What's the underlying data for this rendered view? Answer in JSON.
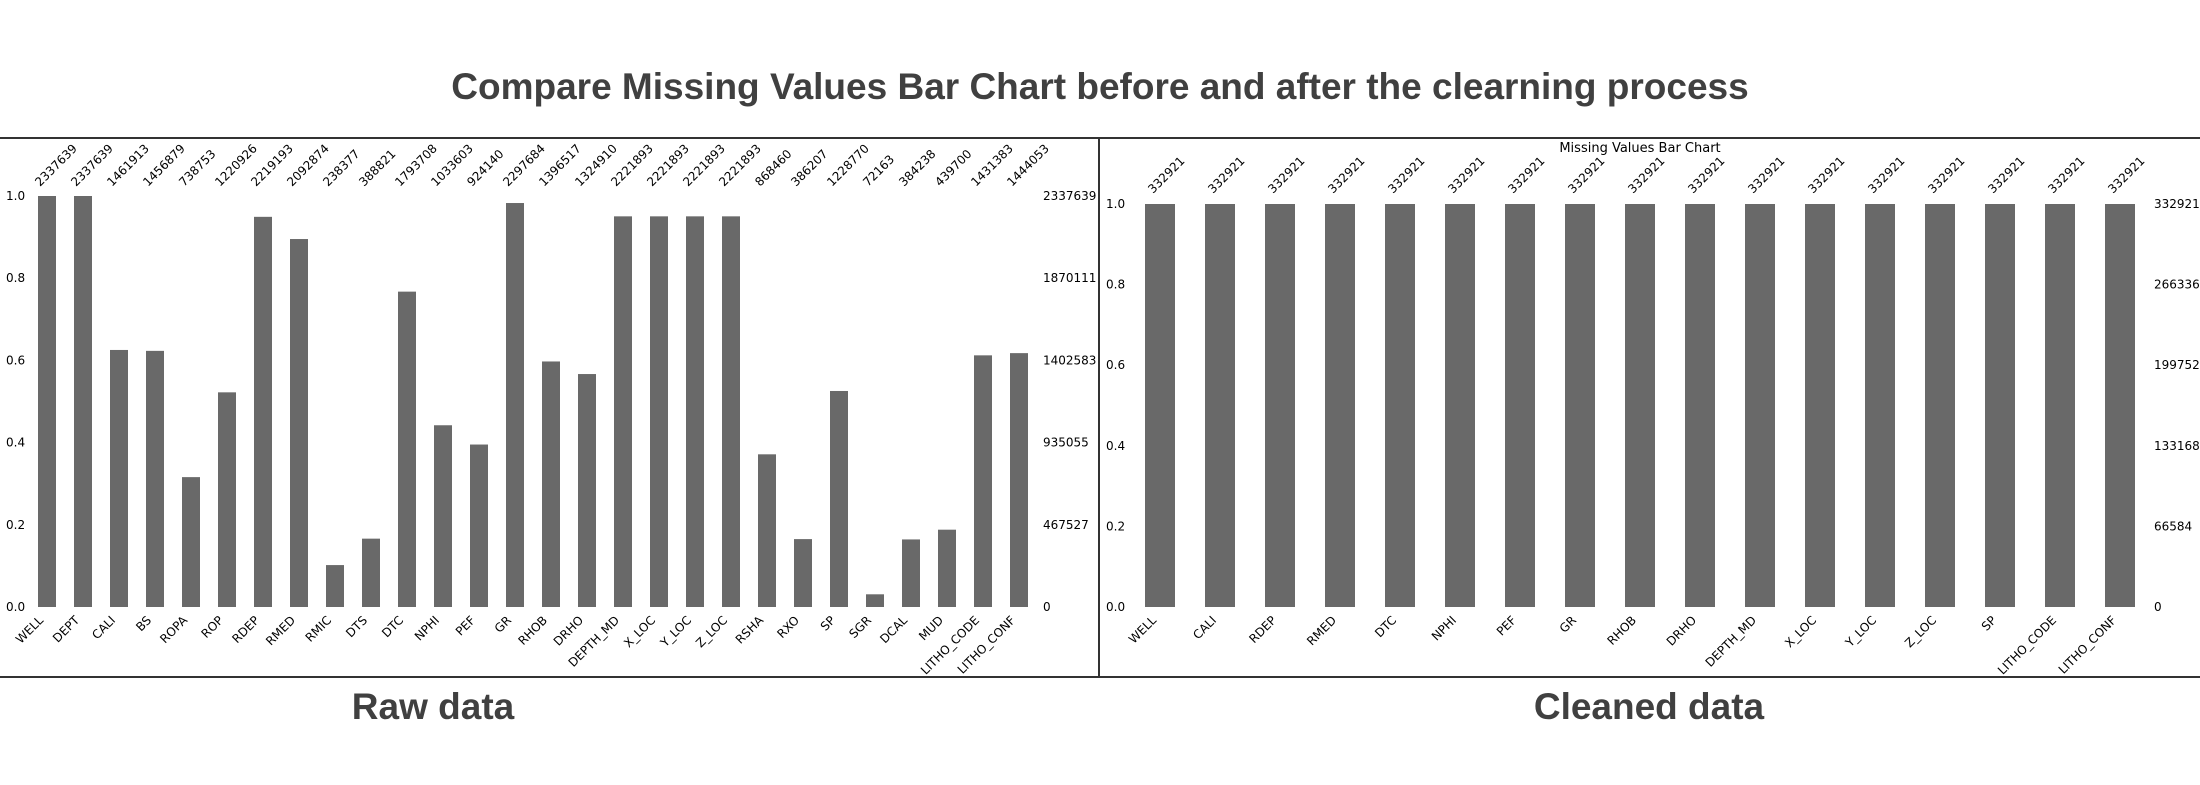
{
  "title": "Compare Missing Values Bar Chart before and after the clearning process",
  "chart_data": [
    {
      "type": "bar",
      "title": "",
      "caption": "Raw data",
      "color": "#696969",
      "ylim": [
        0,
        1.0
      ],
      "left_ticks": [
        "0.0",
        "0.2",
        "0.4",
        "0.6",
        "0.8",
        "1.0"
      ],
      "right_ticks": [
        "0",
        "467527",
        "935055",
        "1402583",
        "1870111",
        "2337639"
      ],
      "categories": [
        "WELL",
        "DEPT",
        "CALI",
        "BS",
        "ROPA",
        "ROP",
        "RDEP",
        "RMED",
        "RMIC",
        "DTS",
        "DTC",
        "NPHI",
        "PEF",
        "GR",
        "RHOB",
        "DRHO",
        "DEPTH_MD",
        "X_LOC",
        "Y_LOC",
        "Z_LOC",
        "RSHA",
        "RXO",
        "SP",
        "SGR",
        "DCAL",
        "MUD",
        "LITHO_CODE",
        "LITHO_CONF"
      ],
      "counts": [
        "2337639",
        "2337639",
        "1461913",
        "1456879",
        "738753",
        "1220926",
        "2219193",
        "2092874",
        "238377",
        "388821",
        "1793708",
        "1033603",
        "924140",
        "2297684",
        "1396517",
        "1324910",
        "2221893",
        "2221893",
        "2221893",
        "2221893",
        "868460",
        "386207",
        "1228770",
        "72163",
        "384238",
        "439700",
        "1431383",
        "1444053"
      ],
      "values": [
        1.0,
        1.0,
        0.6254,
        0.6232,
        0.316,
        0.5223,
        0.9493,
        0.8953,
        0.102,
        0.1663,
        0.7673,
        0.4422,
        0.3953,
        0.9829,
        0.5974,
        0.5668,
        0.9505,
        0.9505,
        0.9505,
        0.9505,
        0.3715,
        0.1652,
        0.5256,
        0.0309,
        0.1644,
        0.1881,
        0.6123,
        0.6177
      ]
    },
    {
      "type": "bar",
      "title": "Missing Values Bar Chart",
      "caption": "Cleaned data",
      "color": "#696969",
      "ylim": [
        0,
        1.0
      ],
      "left_ticks": [
        "0.0",
        "0.2",
        "0.4",
        "0.6",
        "0.8",
        "1.0"
      ],
      "right_ticks": [
        "0",
        "66584",
        "133168",
        "199752",
        "266336",
        "332921"
      ],
      "categories": [
        "WELL",
        "CALI",
        "RDEP",
        "RMED",
        "DTC",
        "NPHI",
        "PEF",
        "GR",
        "RHOB",
        "DRHO",
        "DEPTH_MD",
        "X_LOC",
        "Y_LOC",
        "Z_LOC",
        "SP",
        "LITHO_CODE",
        "LITHO_CONF"
      ],
      "counts": [
        "332921",
        "332921",
        "332921",
        "332921",
        "332921",
        "332921",
        "332921",
        "332921",
        "332921",
        "332921",
        "332921",
        "332921",
        "332921",
        "332921",
        "332921",
        "332921",
        "332921"
      ],
      "values": [
        1.0,
        1.0,
        1.0,
        1.0,
        1.0,
        1.0,
        1.0,
        1.0,
        1.0,
        1.0,
        1.0,
        1.0,
        1.0,
        1.0,
        1.0,
        1.0,
        1.0
      ]
    }
  ]
}
